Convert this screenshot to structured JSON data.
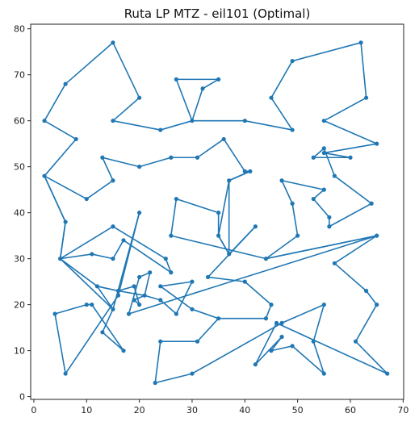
{
  "chart_data": {
    "type": "line",
    "title": "Ruta LP MTZ - eil101 (Optimal)",
    "xlabel": "",
    "ylabel": "",
    "xlim": [
      -0.6,
      70.1
    ],
    "ylim": [
      -0.6,
      81.0
    ],
    "xticks": [
      0,
      10,
      20,
      30,
      40,
      50,
      60,
      70
    ],
    "yticks": [
      0,
      10,
      20,
      30,
      40,
      50,
      60,
      70,
      80
    ],
    "grid": false,
    "line_color": "#1f77b4",
    "marker": "circle",
    "series": [
      {
        "name": "",
        "points": [
          [
            41,
            49
          ],
          [
            37,
            47
          ],
          [
            37,
            31
          ],
          [
            35,
            35
          ],
          [
            35,
            40
          ],
          [
            27,
            43
          ],
          [
            26,
            35
          ],
          [
            44,
            30
          ],
          [
            65,
            35
          ],
          [
            18,
            18
          ],
          [
            20,
            26
          ],
          [
            22,
            27
          ],
          [
            21,
            22
          ],
          [
            19,
            21
          ],
          [
            20,
            20
          ],
          [
            19,
            24
          ],
          [
            16,
            23
          ],
          [
            12,
            24
          ],
          [
            15,
            19
          ],
          [
            13,
            14
          ],
          [
            17,
            10
          ],
          [
            11,
            20
          ],
          [
            10,
            20
          ],
          [
            4,
            18
          ],
          [
            6,
            5
          ],
          [
            16,
            22
          ],
          [
            20,
            40
          ],
          [
            15,
            19
          ],
          [
            5,
            30
          ],
          [
            15,
            37
          ],
          [
            25,
            30
          ],
          [
            26,
            27
          ],
          [
            17,
            34
          ],
          [
            15,
            30
          ],
          [
            11,
            31
          ],
          [
            5,
            30
          ],
          [
            6,
            38
          ],
          [
            2,
            48
          ],
          [
            10,
            43
          ],
          [
            15,
            47
          ],
          [
            13,
            52
          ],
          [
            20,
            50
          ],
          [
            26,
            52
          ],
          [
            31,
            52
          ],
          [
            36,
            56
          ],
          [
            40,
            49
          ],
          [
            41,
            49
          ],
          [
            37,
            47
          ],
          [
            35,
            35
          ],
          [
            37,
            31
          ],
          [
            42,
            37
          ],
          [
            33,
            26
          ],
          [
            40,
            25
          ],
          [
            45,
            20
          ],
          [
            44,
            17
          ],
          [
            35,
            17
          ],
          [
            31,
            12
          ],
          [
            24,
            12
          ],
          [
            23,
            3
          ],
          [
            30,
            5
          ],
          [
            47,
            16
          ],
          [
            55,
            20
          ],
          [
            53,
            12
          ],
          [
            55,
            5
          ],
          [
            49,
            11
          ],
          [
            45,
            10
          ],
          [
            47,
            13
          ],
          [
            42,
            7
          ],
          [
            46,
            16
          ],
          [
            67,
            5
          ],
          [
            61,
            12
          ],
          [
            65,
            20
          ],
          [
            63,
            23
          ],
          [
            57,
            29
          ],
          [
            65,
            35
          ],
          [
            44,
            30
          ],
          [
            50,
            35
          ],
          [
            49,
            42
          ],
          [
            47,
            47
          ],
          [
            55,
            45
          ],
          [
            53,
            43
          ],
          [
            56,
            39
          ],
          [
            56,
            37
          ],
          [
            64,
            42
          ],
          [
            57,
            48
          ],
          [
            55,
            54
          ],
          [
            53,
            52
          ],
          [
            60,
            52
          ],
          [
            55,
            53
          ],
          [
            65,
            55
          ],
          [
            55,
            60
          ],
          [
            63,
            65
          ],
          [
            62,
            77
          ],
          [
            49,
            73
          ],
          [
            45,
            65
          ],
          [
            49,
            58
          ],
          [
            40,
            60
          ],
          [
            30,
            60
          ],
          [
            27,
            69
          ],
          [
            35,
            69
          ],
          [
            32,
            67
          ],
          [
            30,
            60
          ],
          [
            24,
            58
          ],
          [
            15,
            60
          ],
          [
            20,
            65
          ],
          [
            15,
            77
          ],
          [
            6,
            68
          ],
          [
            2,
            60
          ],
          [
            8,
            56
          ],
          [
            2,
            48
          ],
          [
            6,
            38
          ],
          [
            5,
            30
          ],
          [
            12,
            24
          ],
          [
            16,
            23
          ],
          [
            21,
            22
          ],
          [
            24,
            21
          ],
          [
            27,
            18
          ],
          [
            30,
            25
          ],
          [
            24,
            24
          ],
          [
            30,
            19
          ],
          [
            35,
            17
          ]
        ]
      }
    ]
  }
}
